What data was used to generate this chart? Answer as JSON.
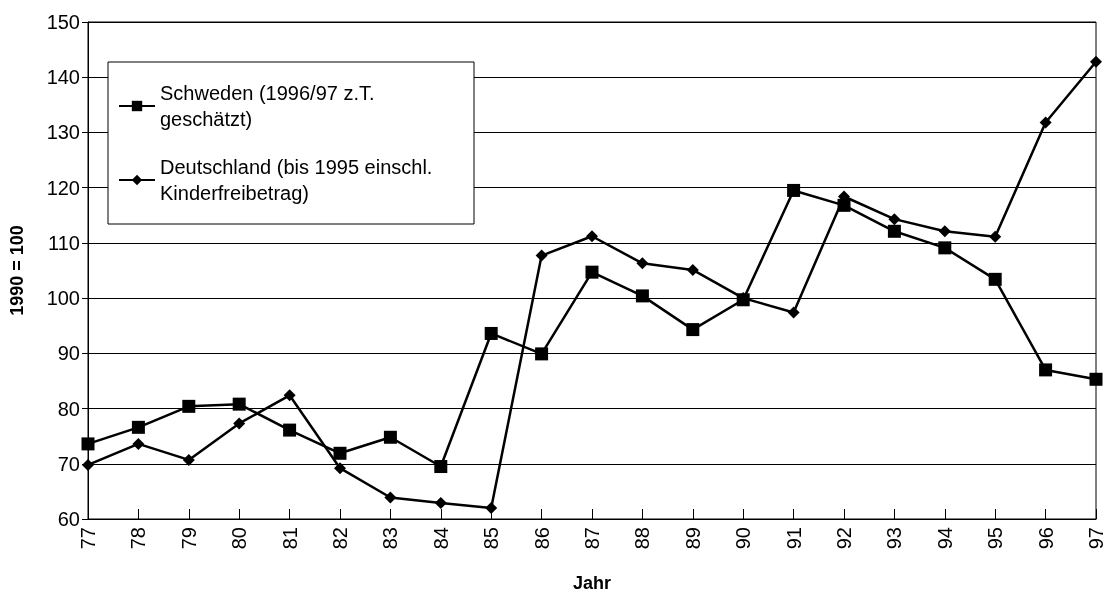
{
  "chart_data": {
    "type": "line",
    "xlabel": "Jahr",
    "ylabel": "1990 = 100",
    "categories": [
      "77",
      "78",
      "79",
      "80",
      "81",
      "82",
      "83",
      "84",
      "85",
      "86",
      "87",
      "88",
      "89",
      "90",
      "91",
      "92",
      "93",
      "94",
      "95",
      "96",
      "97"
    ],
    "series": [
      {
        "name": "Schweden (1996/97 z.T. geschätzt)",
        "color": "#000000",
        "marker": "square",
        "values": [
          73.6,
          76.6,
          80.4,
          80.8,
          76.1,
          71.9,
          74.8,
          69.5,
          93.6,
          89.9,
          104.7,
          100.4,
          94.3,
          99.7,
          119.5,
          116.8,
          112.1,
          109.1,
          103.4,
          87.0,
          85.3
        ]
      },
      {
        "name": "Deutschland (bis 1995 einschl. Kinderfreibetrag)",
        "color": "#000000",
        "marker": "diamond",
        "values": [
          69.8,
          73.6,
          70.7,
          77.3,
          82.4,
          69.2,
          63.9,
          62.9,
          62.0,
          107.7,
          111.2,
          106.3,
          105.1,
          100.0,
          97.4,
          118.4,
          114.3,
          112.1,
          111.1,
          131.8,
          142.8
        ]
      }
    ],
    "ylim": [
      60,
      150
    ],
    "yticks": [
      60,
      70,
      80,
      90,
      100,
      110,
      120,
      130,
      140,
      150
    ],
    "grid": "y",
    "legend": "top left",
    "line_style": "solid"
  }
}
